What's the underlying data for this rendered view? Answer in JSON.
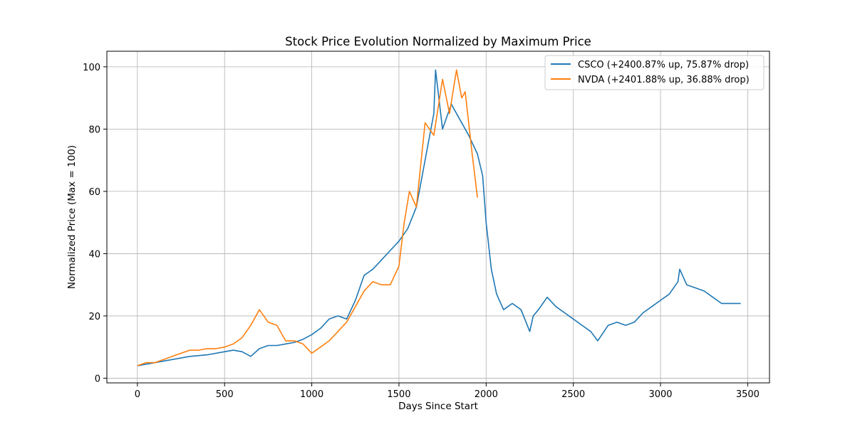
{
  "chart_data": {
    "type": "line",
    "title": "Stock Price Evolution Normalized by Maximum Price",
    "xlabel": "Days Since Start",
    "ylabel": "Normalized Price (Max = 100)",
    "xlim": [
      -175,
      3625
    ],
    "ylim": [
      -1.5,
      105
    ],
    "xticks": [
      0,
      500,
      1000,
      1500,
      2000,
      2500,
      3000,
      3500
    ],
    "yticks": [
      0,
      20,
      40,
      60,
      80,
      100
    ],
    "grid": true,
    "legend_position": "top-right",
    "series": [
      {
        "name": "CSCO (+2400.87% up, 75.87% drop)",
        "color": "#1f77b4",
        "x": [
          0,
          100,
          200,
          300,
          400,
          500,
          550,
          600,
          650,
          700,
          750,
          800,
          850,
          900,
          950,
          1000,
          1050,
          1100,
          1150,
          1200,
          1250,
          1300,
          1350,
          1400,
          1450,
          1500,
          1550,
          1600,
          1650,
          1700,
          1710,
          1750,
          1800,
          1850,
          1900,
          1950,
          1980,
          2000,
          2030,
          2060,
          2100,
          2150,
          2200,
          2250,
          2270,
          2300,
          2350,
          2400,
          2450,
          2500,
          2550,
          2600,
          2640,
          2700,
          2750,
          2800,
          2850,
          2900,
          2950,
          3000,
          3050,
          3100,
          3110,
          3150,
          3200,
          3250,
          3300,
          3350,
          3400,
          3460
        ],
        "y": [
          4,
          5,
          6,
          7,
          7.5,
          8.5,
          9,
          8.5,
          7,
          9.5,
          10.5,
          10.5,
          11,
          11.5,
          12.5,
          14,
          16,
          19,
          20,
          19,
          25,
          33,
          35,
          38,
          41,
          44,
          48,
          55,
          70,
          85,
          99,
          80,
          88,
          83,
          78,
          72,
          65,
          50,
          35,
          27,
          22,
          24,
          22,
          15,
          20,
          22,
          26,
          23,
          21,
          19,
          17,
          15,
          12,
          17,
          18,
          17,
          18,
          21,
          23,
          25,
          27,
          31,
          35,
          30,
          29,
          28,
          26,
          24,
          24,
          24
        ]
      },
      {
        "name": "NVDA (+2401.88% up, 36.88% drop)",
        "color": "#ff7f0e",
        "x": [
          0,
          50,
          100,
          150,
          200,
          250,
          300,
          350,
          400,
          450,
          500,
          550,
          600,
          650,
          700,
          750,
          800,
          850,
          900,
          950,
          1000,
          1050,
          1100,
          1150,
          1200,
          1250,
          1300,
          1350,
          1400,
          1450,
          1500,
          1530,
          1560,
          1600,
          1650,
          1700,
          1750,
          1790,
          1830,
          1860,
          1880,
          1900,
          1920,
          1950
        ],
        "y": [
          4,
          5,
          5,
          6,
          7,
          8,
          9,
          9,
          9.5,
          9.5,
          10,
          11,
          13,
          17,
          22,
          18,
          17,
          12,
          12,
          11,
          8,
          10,
          12,
          15,
          18,
          23,
          28,
          31,
          30,
          30,
          36,
          50,
          60,
          55,
          82,
          78,
          96,
          85,
          99,
          90,
          92,
          82,
          72,
          58
        ]
      }
    ]
  }
}
